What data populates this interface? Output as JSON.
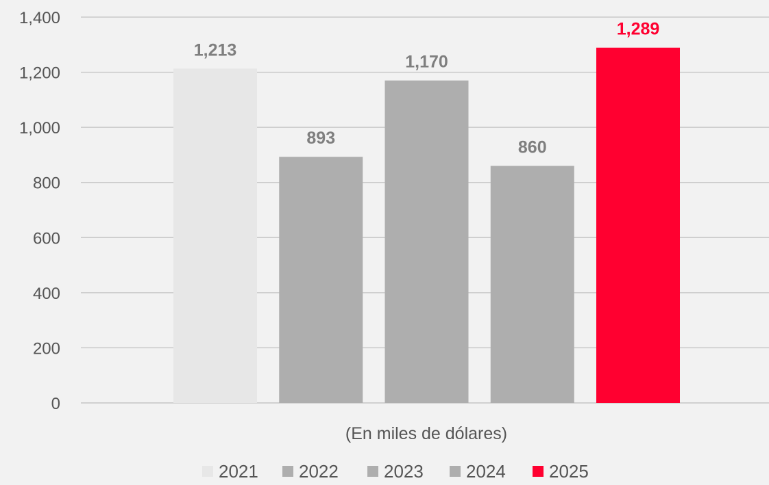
{
  "chart_data": {
    "type": "bar",
    "categories": [
      ""
    ],
    "xlabel": "(En miles de dólares)",
    "ylim": [
      0,
      1400
    ],
    "yticks": [
      0,
      200,
      400,
      600,
      800,
      1000,
      1200,
      1400
    ],
    "ytick_labels": [
      "0",
      "200",
      "400",
      "600",
      "800",
      "1,000",
      "1,200",
      "1,400"
    ],
    "grid": true,
    "legend_position": "bottom",
    "series": [
      {
        "name": "2021",
        "values": [
          1213
        ],
        "label": "1,213",
        "color": "#e7e7e7",
        "label_color": "#7f7f7f"
      },
      {
        "name": "2022",
        "values": [
          893
        ],
        "label": "893",
        "color": "#aeaeae",
        "label_color": "#7f7f7f"
      },
      {
        "name": "2023",
        "values": [
          1170
        ],
        "label": "1,170",
        "color": "#aeaeae",
        "label_color": "#7f7f7f"
      },
      {
        "name": "2024",
        "values": [
          860
        ],
        "label": "860",
        "color": "#aeaeae",
        "label_color": "#7f7f7f"
      },
      {
        "name": "2025",
        "values": [
          1289
        ],
        "label": "1,289",
        "color": "#ff0030",
        "label_color": "#ff0030"
      }
    ]
  }
}
